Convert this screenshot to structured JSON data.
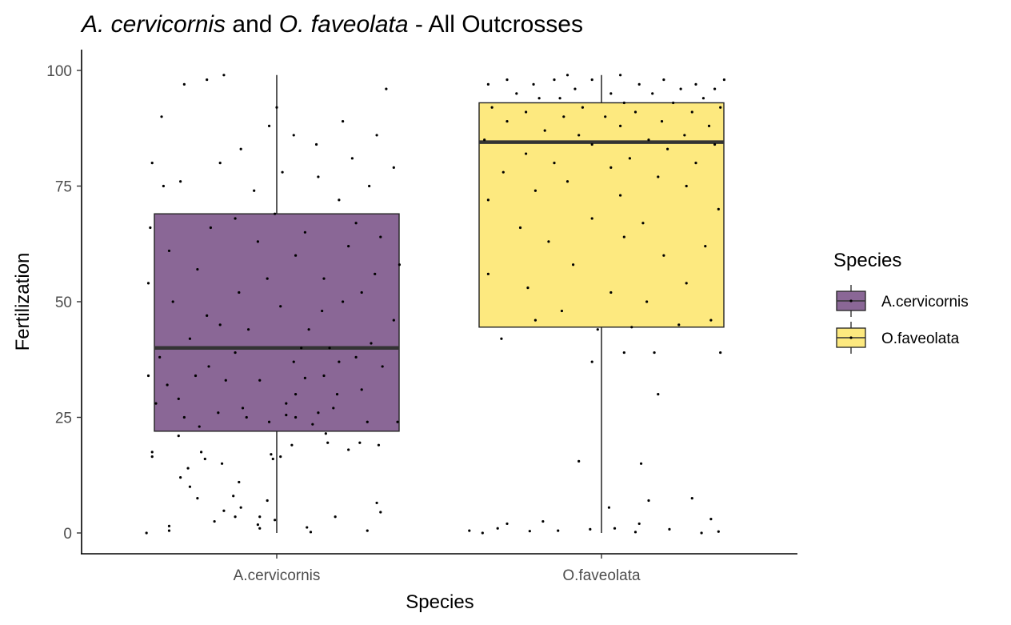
{
  "chart_data": {
    "type": "box",
    "title_parts": [
      {
        "text": "A. cervicornis",
        "italic": true
      },
      {
        "text": " and ",
        "italic": false
      },
      {
        "text": "O. faveolata",
        "italic": true
      },
      {
        "text": " - All Outcrosses",
        "italic": false
      }
    ],
    "xlabel": "Species",
    "ylabel": "Fertilization",
    "categories": [
      "A.cervicornis",
      "O.faveolata"
    ],
    "ylim": [
      -4.5,
      104.5
    ],
    "yticks": [
      "0",
      "25",
      "50",
      "75",
      "100"
    ],
    "grid": false,
    "legend": {
      "title": "Species",
      "position": "right",
      "entries": [
        "A.cervicornis",
        "O.faveolata"
      ]
    },
    "series": [
      {
        "name": "A.cervicornis",
        "color": "#8A6796",
        "box": {
          "min": 0,
          "q1": 22,
          "median": 40,
          "q3": 69,
          "max": 99
        },
        "points": [
          [
            -0.69,
            0
          ],
          [
            -0.57,
            0.5
          ],
          [
            0.18,
            0.2
          ],
          [
            0.48,
            0.5
          ],
          [
            -0.57,
            1.5
          ],
          [
            -0.09,
            1
          ],
          [
            -0.1,
            1.8
          ],
          [
            0.16,
            1.2
          ],
          [
            -0.33,
            2.5
          ],
          [
            -0.01,
            2.8
          ],
          [
            -0.22,
            3.5
          ],
          [
            -0.09,
            3.5
          ],
          [
            0.31,
            3.5
          ],
          [
            0.55,
            4.5
          ],
          [
            -0.28,
            4.8
          ],
          [
            -0.19,
            5.5
          ],
          [
            0.53,
            6.5
          ],
          [
            -0.05,
            7
          ],
          [
            -0.42,
            7.5
          ],
          [
            -0.23,
            8
          ],
          [
            -0.46,
            10
          ],
          [
            -0.2,
            11
          ],
          [
            -0.51,
            12
          ],
          [
            -0.47,
            14
          ],
          [
            -0.29,
            15
          ],
          [
            -0.38,
            16
          ],
          [
            -0.02,
            16
          ],
          [
            -0.66,
            16.5
          ],
          [
            0.02,
            16.5
          ],
          [
            -0.03,
            17
          ],
          [
            -0.4,
            17.5
          ],
          [
            -0.66,
            17.5
          ],
          [
            0.38,
            18
          ],
          [
            0.08,
            19
          ],
          [
            0.27,
            19.5
          ],
          [
            0.44,
            19.5
          ],
          [
            0.54,
            19
          ],
          [
            -0.52,
            21
          ],
          [
            0.26,
            21.5
          ],
          [
            -0.41,
            23
          ],
          [
            0.19,
            23.5
          ],
          [
            -0.04,
            24
          ],
          [
            0.64,
            24
          ],
          [
            0.48,
            24
          ],
          [
            -0.16,
            25
          ],
          [
            0.05,
            25.5
          ],
          [
            -0.49,
            25
          ],
          [
            0.1,
            25
          ],
          [
            -0.31,
            26
          ],
          [
            0.22,
            26
          ],
          [
            -0.18,
            27
          ],
          [
            0.3,
            27
          ],
          [
            -0.64,
            28
          ],
          [
            0.05,
            28
          ],
          [
            -0.52,
            29
          ],
          [
            0.1,
            30
          ],
          [
            0.32,
            30
          ],
          [
            0.45,
            31
          ],
          [
            -0.58,
            32
          ],
          [
            -0.27,
            33
          ],
          [
            -0.09,
            33
          ],
          [
            0.15,
            33.5
          ],
          [
            0.25,
            34
          ],
          [
            -0.68,
            34
          ],
          [
            -0.43,
            34
          ],
          [
            0.56,
            36
          ],
          [
            -0.36,
            36
          ],
          [
            0.09,
            37
          ],
          [
            0.33,
            37
          ],
          [
            0.42,
            38
          ],
          [
            -0.62,
            38
          ],
          [
            -0.22,
            39
          ],
          [
            0.13,
            40
          ],
          [
            0.28,
            40
          ],
          [
            0.5,
            41
          ],
          [
            -0.46,
            42
          ],
          [
            -0.15,
            44
          ],
          [
            0.17,
            44
          ],
          [
            -0.3,
            45
          ],
          [
            0.62,
            46
          ],
          [
            -0.37,
            47
          ],
          [
            0.24,
            48
          ],
          [
            0.02,
            49
          ],
          [
            -0.55,
            50
          ],
          [
            0.35,
            50
          ],
          [
            -0.2,
            52
          ],
          [
            0.45,
            52
          ],
          [
            -0.68,
            54
          ],
          [
            -0.05,
            55
          ],
          [
            0.25,
            55
          ],
          [
            0.52,
            56
          ],
          [
            -0.42,
            57
          ],
          [
            0.65,
            58
          ],
          [
            0.1,
            60
          ],
          [
            -0.57,
            61
          ],
          [
            0.38,
            62
          ],
          [
            -0.1,
            63
          ],
          [
            0.55,
            64
          ],
          [
            0.15,
            65
          ],
          [
            -0.35,
            66
          ],
          [
            -0.67,
            66
          ],
          [
            0.42,
            67
          ],
          [
            -0.22,
            68
          ],
          [
            -0.01,
            69
          ],
          [
            0.33,
            72
          ],
          [
            -0.12,
            74
          ],
          [
            -0.6,
            75
          ],
          [
            0.49,
            75
          ],
          [
            -0.51,
            76
          ],
          [
            0.22,
            77
          ],
          [
            0.03,
            78
          ],
          [
            0.62,
            79
          ],
          [
            -0.3,
            80
          ],
          [
            -0.66,
            80
          ],
          [
            0.4,
            81
          ],
          [
            -0.19,
            83
          ],
          [
            0.21,
            84
          ],
          [
            0.09,
            86
          ],
          [
            0.53,
            86
          ],
          [
            -0.04,
            88
          ],
          [
            0.35,
            89
          ],
          [
            -0.61,
            90
          ],
          [
            0.0,
            92
          ],
          [
            0.58,
            96
          ],
          [
            -0.49,
            97
          ],
          [
            -0.37,
            98
          ],
          [
            -0.28,
            99
          ]
        ]
      },
      {
        "name": "O.faveolata",
        "color": "#FDE97F",
        "box": {
          "min": 0,
          "q1": 44.5,
          "median": 84.5,
          "q3": 93,
          "max": 99
        },
        "points": [
          [
            -0.7,
            0.5
          ],
          [
            -0.63,
            0
          ],
          [
            -0.55,
            1
          ],
          [
            -0.38,
            0.4
          ],
          [
            -0.23,
            0.5
          ],
          [
            -0.06,
            0.8
          ],
          [
            0.07,
            1
          ],
          [
            0.18,
            0.2
          ],
          [
            0.36,
            0.8
          ],
          [
            0.53,
            0
          ],
          [
            0.62,
            0.3
          ],
          [
            -0.5,
            2
          ],
          [
            -0.31,
            2.5
          ],
          [
            0.2,
            2
          ],
          [
            0.58,
            3
          ],
          [
            0.04,
            5.5
          ],
          [
            0.25,
            7
          ],
          [
            0.48,
            7.5
          ],
          [
            -0.12,
            15.5
          ],
          [
            0.21,
            15
          ],
          [
            0.3,
            30
          ],
          [
            -0.05,
            37
          ],
          [
            0.12,
            39
          ],
          [
            0.28,
            39
          ],
          [
            0.63,
            39
          ],
          [
            -0.53,
            42
          ],
          [
            -0.02,
            44
          ],
          [
            0.16,
            44.5
          ],
          [
            0.41,
            45
          ],
          [
            -0.35,
            46
          ],
          [
            0.58,
            46
          ],
          [
            -0.21,
            48
          ],
          [
            0.24,
            50
          ],
          [
            0.05,
            52
          ],
          [
            -0.39,
            53
          ],
          [
            0.45,
            54
          ],
          [
            -0.6,
            56
          ],
          [
            -0.15,
            58
          ],
          [
            0.33,
            60
          ],
          [
            0.55,
            62
          ],
          [
            -0.28,
            63
          ],
          [
            0.12,
            64
          ],
          [
            -0.43,
            66
          ],
          [
            0.22,
            67
          ],
          [
            -0.05,
            68
          ],
          [
            0.62,
            70
          ],
          [
            -0.6,
            72
          ],
          [
            0.1,
            73
          ],
          [
            -0.35,
            74
          ],
          [
            0.45,
            75
          ],
          [
            -0.18,
            76
          ],
          [
            0.3,
            77
          ],
          [
            -0.52,
            78
          ],
          [
            0.05,
            79
          ],
          [
            -0.25,
            80
          ],
          [
            0.5,
            80
          ],
          [
            0.15,
            81
          ],
          [
            -0.4,
            82
          ],
          [
            0.35,
            83
          ],
          [
            -0.05,
            84
          ],
          [
            0.6,
            84
          ],
          [
            -0.62,
            85
          ],
          [
            0.25,
            85
          ],
          [
            -0.12,
            86
          ],
          [
            0.44,
            86
          ],
          [
            -0.3,
            87
          ],
          [
            0.1,
            88
          ],
          [
            0.57,
            88
          ],
          [
            -0.5,
            89
          ],
          [
            0.32,
            89
          ],
          [
            -0.2,
            90
          ],
          [
            0.02,
            90
          ],
          [
            0.48,
            91
          ],
          [
            -0.4,
            91
          ],
          [
            0.18,
            91
          ],
          [
            0.63,
            92
          ],
          [
            -0.58,
            92
          ],
          [
            -0.1,
            92
          ],
          [
            0.38,
            93
          ],
          [
            0.12,
            93
          ],
          [
            -0.33,
            94
          ],
          [
            0.54,
            94
          ],
          [
            -0.22,
            94
          ],
          [
            0.27,
            95
          ],
          [
            -0.45,
            95
          ],
          [
            0.05,
            95
          ],
          [
            0.6,
            96
          ],
          [
            -0.14,
            96
          ],
          [
            0.42,
            96
          ],
          [
            -0.6,
            97
          ],
          [
            0.2,
            97
          ],
          [
            -0.36,
            97
          ],
          [
            0.5,
            97
          ],
          [
            -0.05,
            98
          ],
          [
            0.33,
            98
          ],
          [
            -0.25,
            98
          ],
          [
            0.65,
            98
          ],
          [
            -0.5,
            98
          ],
          [
            0.1,
            99
          ],
          [
            -0.18,
            99
          ]
        ]
      }
    ]
  }
}
